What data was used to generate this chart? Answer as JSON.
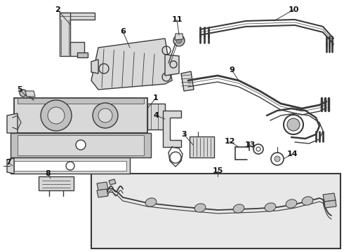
{
  "bg_color": "#f5f5f5",
  "line_color": "#3a3a3a",
  "label_color": "#111111",
  "fig_width": 4.9,
  "fig_height": 3.6,
  "dpi": 100,
  "white": "#ffffff",
  "gray_light": "#d8d8d8",
  "gray_med": "#c0c0c0",
  "gray_dark": "#909090",
  "inset_bg": "#e8e8e8"
}
